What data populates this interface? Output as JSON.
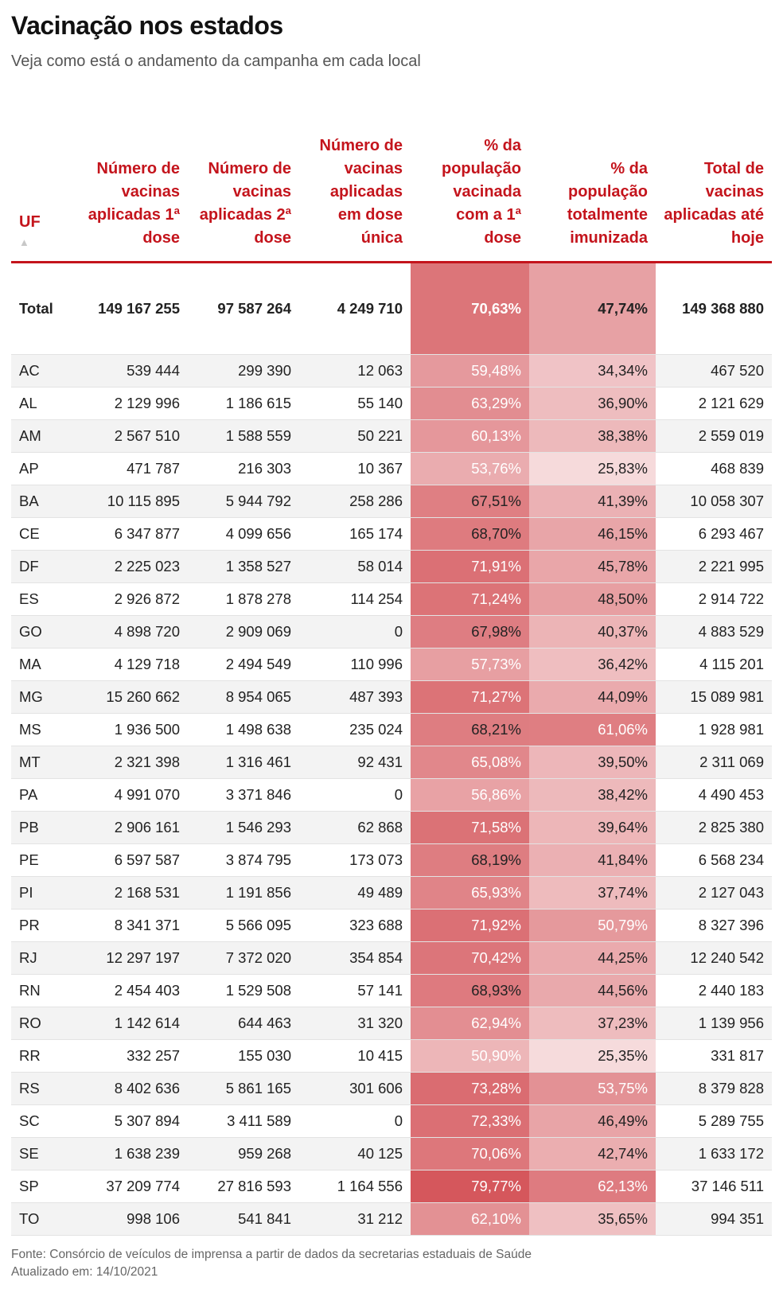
{
  "header": {
    "title": "Vacinação nos estados",
    "subtitle": "Veja como está o andamento da campanha em cada local"
  },
  "table": {
    "columns": [
      "UF",
      "Número de vacinas aplicadas 1ª dose",
      "Número de vacinas aplicadas 2ª dose",
      "Número de vacinas aplicadas em dose única",
      "% da população vacinada com a 1ª dose",
      "% da população totalmente imunizada",
      "Total de vacinas aplicadas até hoje"
    ],
    "sort_indicator": "▲",
    "total": [
      "Total",
      "149 167 255",
      "97 587 264",
      "4 249 710",
      "70,63%",
      "47,74%",
      "149 368 880"
    ],
    "rows": [
      [
        "AC",
        "539 444",
        "299 390",
        "12 063",
        "59,48%",
        "34,34%",
        "467 520"
      ],
      [
        "AL",
        "2 129 996",
        "1 186 615",
        "55 140",
        "63,29%",
        "36,90%",
        "2 121 629"
      ],
      [
        "AM",
        "2 567 510",
        "1 588 559",
        "50 221",
        "60,13%",
        "38,38%",
        "2 559 019"
      ],
      [
        "AP",
        "471 787",
        "216 303",
        "10 367",
        "53,76%",
        "25,83%",
        "468 839"
      ],
      [
        "BA",
        "10 115 895",
        "5 944 792",
        "258 286",
        "67,51%",
        "41,39%",
        "10 058 307"
      ],
      [
        "CE",
        "6 347 877",
        "4 099 656",
        "165 174",
        "68,70%",
        "46,15%",
        "6 293 467"
      ],
      [
        "DF",
        "2 225 023",
        "1 358 527",
        "58 014",
        "71,91%",
        "45,78%",
        "2 221 995"
      ],
      [
        "ES",
        "2 926 872",
        "1 878 278",
        "114 254",
        "71,24%",
        "48,50%",
        "2 914 722"
      ],
      [
        "GO",
        "4 898 720",
        "2 909 069",
        "0",
        "67,98%",
        "40,37%",
        "4 883 529"
      ],
      [
        "MA",
        "4 129 718",
        "2 494 549",
        "110 996",
        "57,73%",
        "36,42%",
        "4 115 201"
      ],
      [
        "MG",
        "15 260 662",
        "8 954 065",
        "487 393",
        "71,27%",
        "44,09%",
        "15 089 981"
      ],
      [
        "MS",
        "1 936 500",
        "1 498 638",
        "235 024",
        "68,21%",
        "61,06%",
        "1 928 981"
      ],
      [
        "MT",
        "2 321 398",
        "1 316 461",
        "92 431",
        "65,08%",
        "39,50%",
        "2 311 069"
      ],
      [
        "PA",
        "4 991 070",
        "3 371 846",
        "0",
        "56,86%",
        "38,42%",
        "4 490 453"
      ],
      [
        "PB",
        "2 906 161",
        "1 546 293",
        "62 868",
        "71,58%",
        "39,64%",
        "2 825 380"
      ],
      [
        "PE",
        "6 597 587",
        "3 874 795",
        "173 073",
        "68,19%",
        "41,84%",
        "6 568 234"
      ],
      [
        "PI",
        "2 168 531",
        "1 191 856",
        "49 489",
        "65,93%",
        "37,74%",
        "2 127 043"
      ],
      [
        "PR",
        "8 341 371",
        "5 566 095",
        "323 688",
        "71,92%",
        "50,79%",
        "8 327 396"
      ],
      [
        "RJ",
        "12 297 197",
        "7 372 020",
        "354 854",
        "70,42%",
        "44,25%",
        "12 240 542"
      ],
      [
        "RN",
        "2 454 403",
        "1 529 508",
        "57 141",
        "68,93%",
        "44,56%",
        "2 440 183"
      ],
      [
        "RO",
        "1 142 614",
        "644 463",
        "31 320",
        "62,94%",
        "37,23%",
        "1 139 956"
      ],
      [
        "RR",
        "332 257",
        "155 030",
        "10 415",
        "50,90%",
        "25,35%",
        "331 817"
      ],
      [
        "RS",
        "8 402 636",
        "5 861 165",
        "301 606",
        "73,28%",
        "53,75%",
        "8 379 828"
      ],
      [
        "SC",
        "5 307 894",
        "3 411 589",
        "0",
        "72,33%",
        "46,49%",
        "5 289 755"
      ],
      [
        "SE",
        "1 638 239",
        "959 268",
        "40 125",
        "70,06%",
        "42,74%",
        "1 633 172"
      ],
      [
        "SP",
        "37 209 774",
        "27 816 593",
        "1 164 556",
        "79,77%",
        "62,13%",
        "37 146 511"
      ],
      [
        "TO",
        "998 106",
        "541 841",
        "31 212",
        "62,10%",
        "35,65%",
        "994 351"
      ]
    ]
  },
  "chart_data": {
    "type": "table",
    "title": "Vacinação nos estados",
    "subtitle": "Veja como está o andamento da campanha em cada local",
    "heatmap_columns": [
      "% da população vacinada com a 1ª dose",
      "% da população totalmente imunizada"
    ],
    "heat_color": "#c4141c"
  },
  "footer": {
    "source": "Fonte: Consórcio de veículos de imprensa a partir de dados da secretarias estaduais de Saúde",
    "updated": "Atualizado em: 14/10/2021"
  },
  "colors": {
    "accent": "#c4141c",
    "heat_base": "#c4141c",
    "zebra": "#f3f3f3"
  }
}
